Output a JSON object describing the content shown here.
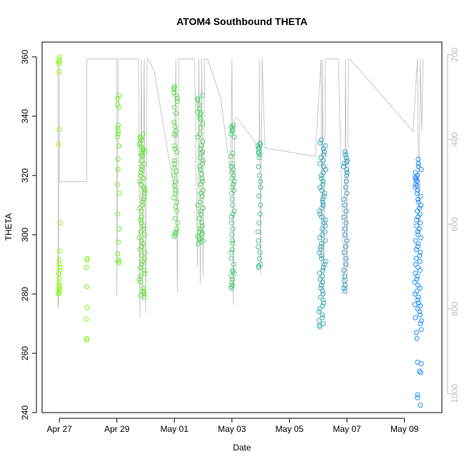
{
  "chart_data": {
    "type": "scatter",
    "title": "ATOM4 Southbound THETA",
    "xlabel": "Date",
    "ylabel": "THETA",
    "x_tick_labels": [
      "Apr 27",
      "Apr 29",
      "May 01",
      "May 03",
      "May 05",
      "May 07",
      "May 09"
    ],
    "x_tick_day_offsets": [
      0,
      2,
      4,
      6,
      8,
      10,
      12
    ],
    "x_origin_date": "Apr 27",
    "xlim_days": [
      -0.6,
      13.3
    ],
    "ylim": [
      240,
      365
    ],
    "y_ticks": [
      240,
      260,
      280,
      300,
      320,
      340,
      360
    ],
    "y2_label": "",
    "y2_ticks": [
      200,
      400,
      600,
      800,
      1000
    ],
    "y2lim": [
      1045,
      170
    ],
    "grid": false,
    "depth_trace_color": "#bdbdbd",
    "point_color_start": "#7fff00",
    "point_color_end": "#1e90ff",
    "groups": [
      {
        "day": 0.0,
        "spread": 0.03,
        "y_values": [
          360,
          359,
          358.5,
          357.8,
          355,
          335.5,
          330.5,
          304,
          294.5,
          291.5,
          290,
          289,
          288,
          287,
          285.5,
          284,
          283,
          282.2,
          281.5,
          281,
          280.5,
          280
        ]
      },
      {
        "day": 0.95,
        "spread": 0.02,
        "y_values": [
          292,
          291.5,
          289,
          282.5,
          275.5,
          271.5,
          265,
          264.5
        ]
      },
      {
        "day": 2.05,
        "spread": 0.04,
        "y_values": [
          347,
          346,
          344,
          343,
          337,
          336,
          335,
          334,
          333,
          330,
          325.5,
          322,
          317,
          314,
          307,
          302,
          297.5,
          293.5,
          291.5,
          291,
          290.5
        ]
      },
      {
        "day": 2.88,
        "spread": 0.1,
        "y_values": [
          334,
          333,
          332.5,
          332,
          331,
          330.5,
          329.5,
          329,
          328.5,
          328,
          327.5,
          327,
          326.5,
          325,
          324,
          323,
          322,
          321,
          320,
          319,
          318,
          317,
          316,
          315.5,
          315,
          314,
          313,
          312,
          311,
          310,
          309,
          308,
          306,
          305,
          304,
          303,
          302,
          301,
          300,
          299,
          298,
          297,
          296,
          295,
          294,
          293,
          292,
          291,
          290,
          289,
          288,
          287,
          286,
          285,
          284,
          282,
          281,
          280.5,
          280,
          279.5,
          279
        ]
      },
      {
        "day": 4.05,
        "spread": 0.07,
        "y_values": [
          350,
          349.5,
          349,
          348,
          347,
          346,
          345,
          343,
          341,
          338,
          336.5,
          335,
          334,
          333.5,
          330,
          329,
          328,
          325,
          324,
          322.5,
          321.5,
          320,
          318,
          316.5,
          315,
          314,
          312.5,
          311,
          309.5,
          308,
          305.5,
          304,
          302,
          301,
          300.5,
          300,
          299.5
        ]
      },
      {
        "day": 4.9,
        "spread": 0.1,
        "y_values": [
          347,
          346,
          345.5,
          344,
          342.5,
          341.5,
          341,
          340.5,
          339.5,
          339,
          337.5,
          336,
          334,
          333,
          331.5,
          330,
          329,
          328,
          327.5,
          326,
          325,
          324,
          323,
          322,
          320.5,
          319,
          318,
          317,
          315,
          314,
          313,
          311,
          310,
          309,
          308,
          307,
          305.5,
          304,
          303,
          302,
          301,
          300.5,
          300,
          299.5,
          299,
          298.5,
          298,
          297.5,
          297
        ]
      },
      {
        "day": 6.03,
        "spread": 0.06,
        "y_values": [
          337,
          336.5,
          336,
          335.5,
          335,
          334,
          333,
          327.5,
          326.5,
          324,
          323,
          322,
          321,
          320,
          319,
          318,
          317,
          316,
          315,
          314,
          312,
          310,
          308,
          307,
          306,
          304,
          302,
          300,
          298,
          297,
          295,
          294,
          292,
          290,
          288,
          287.5,
          287,
          286,
          285,
          284,
          283,
          282.5,
          282
        ]
      },
      {
        "day": 6.95,
        "spread": 0.05,
        "y_values": [
          331,
          330.5,
          330,
          329.5,
          329,
          328,
          327.5,
          327,
          326,
          323,
          320,
          318,
          316,
          313,
          310,
          307,
          304,
          301,
          298,
          296,
          294,
          292,
          290,
          289.5,
          289
        ]
      },
      {
        "day": 9.15,
        "spread": 0.12,
        "y_values": [
          332,
          331,
          330,
          329,
          328,
          327,
          326,
          325,
          324,
          323,
          322,
          321,
          320,
          319,
          318,
          317,
          316,
          315,
          314,
          313,
          312,
          311,
          310,
          309,
          308,
          307,
          306,
          305,
          304,
          303,
          302,
          301,
          300,
          299,
          298,
          297,
          296,
          295,
          294,
          293,
          292,
          291,
          290,
          289,
          288,
          287,
          286,
          285,
          284,
          283,
          282,
          281,
          280,
          279,
          278,
          277,
          276,
          275,
          274,
          273,
          272,
          271,
          270,
          269.5,
          269
        ]
      },
      {
        "day": 9.95,
        "spread": 0.06,
        "y_values": [
          328,
          327,
          326,
          325,
          324.5,
          324,
          323,
          322,
          321,
          320,
          318,
          316,
          314,
          312,
          310,
          308,
          306,
          304,
          302,
          300,
          298,
          296,
          294,
          292,
          290,
          288,
          286,
          284.5,
          283,
          282,
          281
        ]
      },
      {
        "day": 12.48,
        "spread": 0.12,
        "y_values": [
          325.5,
          324,
          323,
          322,
          321,
          320,
          319.5,
          319,
          318.5,
          318,
          317,
          316.5,
          316,
          315,
          314,
          313,
          312,
          311,
          310,
          309,
          308,
          307,
          306,
          305,
          304,
          303,
          302,
          301,
          300,
          299,
          298,
          297,
          296,
          295,
          294,
          293,
          292,
          291,
          290,
          289,
          288,
          287,
          286,
          285,
          284,
          283,
          282,
          281,
          280,
          279,
          278,
          277,
          276.5,
          276,
          275,
          274,
          273,
          272,
          271,
          270,
          268,
          267,
          265,
          257,
          256.5,
          254,
          253.5,
          246,
          245,
          242.5
        ]
      }
    ],
    "depth_trace": [
      [
        -0.05,
        210
      ],
      [
        -0.05,
        800
      ],
      [
        -0.03,
        790
      ],
      [
        0.0,
        210
      ],
      [
        0.0,
        500
      ],
      [
        0.95,
        500
      ],
      [
        0.95,
        210
      ],
      [
        0.95,
        210
      ],
      [
        2.0,
        210
      ],
      [
        2.0,
        770
      ],
      [
        2.05,
        210
      ],
      [
        2.6,
        210
      ],
      [
        2.75,
        210
      ],
      [
        2.8,
        820
      ],
      [
        2.85,
        210
      ],
      [
        2.9,
        780
      ],
      [
        2.95,
        210
      ],
      [
        3.0,
        810
      ],
      [
        3.05,
        210
      ],
      [
        3.1,
        210
      ],
      [
        3.3,
        240
      ],
      [
        4.0,
        520
      ],
      [
        4.05,
        210
      ],
      [
        4.1,
        760
      ],
      [
        4.15,
        210
      ],
      [
        4.7,
        210
      ],
      [
        4.8,
        700
      ],
      [
        4.85,
        210
      ],
      [
        4.9,
        740
      ],
      [
        4.95,
        210
      ],
      [
        5.0,
        720
      ],
      [
        5.05,
        210
      ],
      [
        5.15,
        210
      ],
      [
        5.6,
        300
      ],
      [
        5.95,
        480
      ],
      [
        6.0,
        210
      ],
      [
        6.05,
        790
      ],
      [
        6.1,
        350
      ],
      [
        6.2,
        350
      ],
      [
        6.95,
        420
      ],
      [
        6.95,
        210
      ],
      [
        7.0,
        720
      ],
      [
        7.05,
        210
      ],
      [
        7.15,
        420
      ],
      [
        8.9,
        440
      ],
      [
        9.1,
        210
      ],
      [
        9.12,
        760
      ],
      [
        9.15,
        210
      ],
      [
        9.2,
        770
      ],
      [
        9.25,
        210
      ],
      [
        9.7,
        210
      ],
      [
        9.9,
        760
      ],
      [
        9.95,
        210
      ],
      [
        10.0,
        770
      ],
      [
        10.05,
        210
      ],
      [
        10.1,
        210
      ],
      [
        12.3,
        380
      ],
      [
        12.45,
        210
      ],
      [
        12.5,
        620
      ],
      [
        12.55,
        210
      ],
      [
        12.6,
        380
      ],
      [
        12.65,
        210
      ]
    ]
  }
}
